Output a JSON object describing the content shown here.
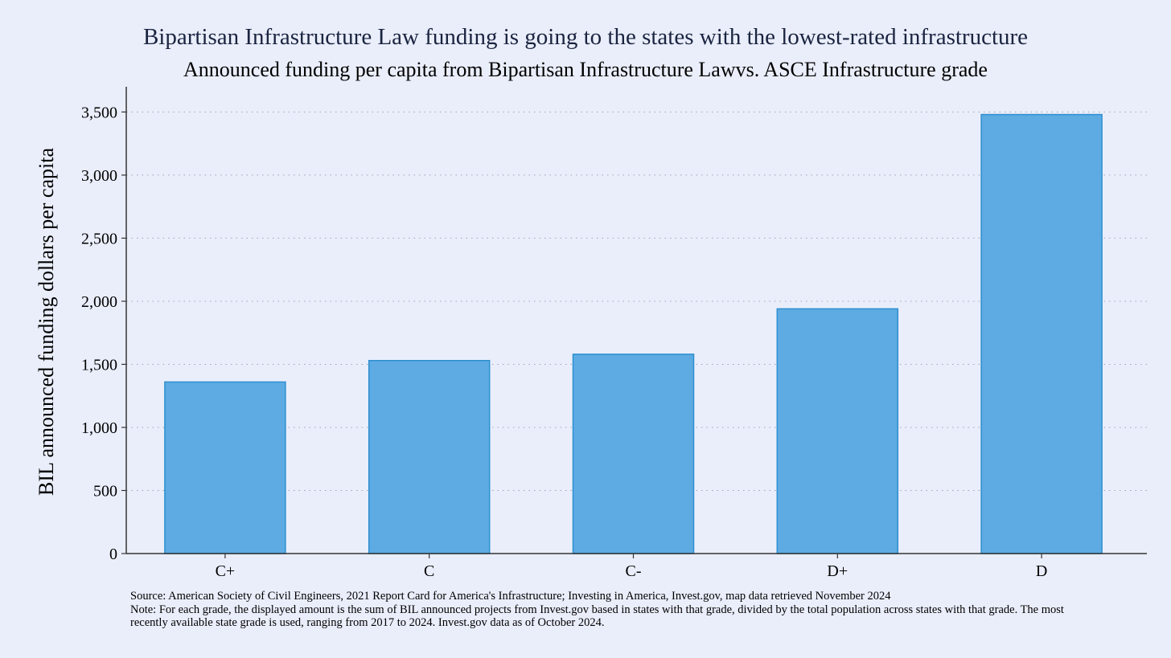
{
  "chart_data": {
    "type": "bar",
    "title": "Bipartisan Infrastructure Law funding is going to the states with the lowest-rated infrastructure",
    "subtitle": "Announced funding per capita from Bipartisan Infrastructure Lawvs. ASCE Infrastructure grade",
    "xlabel": "",
    "ylabel": "BIL announced funding dollars per capita",
    "categories": [
      "C+",
      "C",
      "C-",
      "D+",
      "D"
    ],
    "values": [
      1360,
      1530,
      1580,
      1940,
      3480
    ],
    "ylim": [
      0,
      3700
    ],
    "yticks": [
      0,
      500,
      1000,
      1500,
      2000,
      2500,
      3000,
      3500
    ],
    "ytick_labels": [
      "0",
      "500",
      "1,000",
      "1,500",
      "2,000",
      "2,500",
      "3,000",
      "3,500"
    ],
    "grid": "horizontal dotted",
    "bar_color": "#5dabe2",
    "bar_edge_color": "#2f8fcf"
  },
  "notes": {
    "source": "Source: American Society of Civil Engineers, 2021 Report Card for America's Infrastructure; Investing in America, Invest.gov, map data retrieved November 2024",
    "note": "Note: For each grade, the displayed amount is the sum of BIL announced projects from Invest.gov based in states with that grade, divided by the total population across states with that grade. The most recently available state grade is used, ranging from 2017 to 2024. Invest.gov data as of October 2024."
  }
}
